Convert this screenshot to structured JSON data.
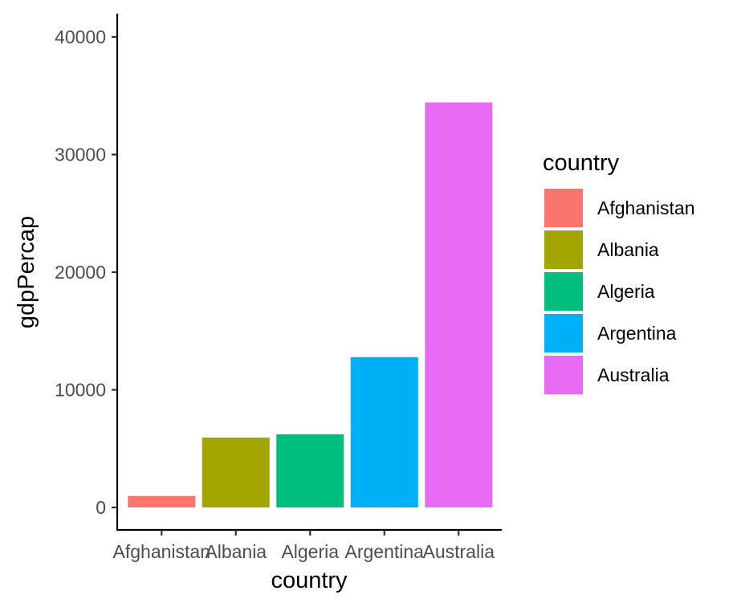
{
  "chart_data": {
    "type": "bar",
    "categories": [
      "Afghanistan",
      "Albania",
      "Algeria",
      "Argentina",
      "Australia"
    ],
    "values": [
      974.58,
      5937.03,
      6223.37,
      12779.38,
      34435.37
    ],
    "colors": [
      "#F8766D",
      "#A3A500",
      "#00BF7D",
      "#00B0F6",
      "#E76BF3"
    ],
    "xlabel": "country",
    "ylabel": "gdpPercap",
    "ylim": [
      0,
      40000
    ],
    "y_ticks": [
      0,
      10000,
      20000,
      30000,
      40000
    ],
    "y_tick_labels": [
      "0",
      "10000",
      "20000",
      "30000",
      "40000"
    ],
    "grid": false,
    "legend": {
      "title": "country",
      "placement": "right",
      "entries": [
        "Afghanistan",
        "Albania",
        "Algeria",
        "Argentina",
        "Australia"
      ]
    }
  }
}
